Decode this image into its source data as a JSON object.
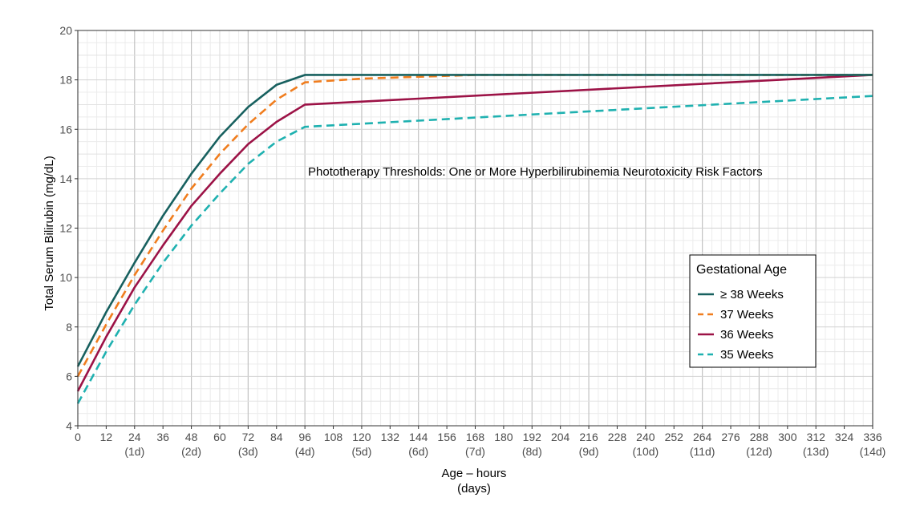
{
  "chart_data": {
    "type": "line",
    "xlabel": "Age – hours",
    "xlabel_sub": "(days)",
    "ylabel": "Total Serum Bilirubin (mg/dL)",
    "annotation": "Phototherapy Thresholds:  One or More Hyperbilirubinemia Neurotoxicity Risk Factors",
    "xlim": [
      0,
      336
    ],
    "ylim": [
      4,
      20
    ],
    "x_ticks": [
      0,
      12,
      24,
      36,
      48,
      60,
      72,
      84,
      96,
      108,
      120,
      132,
      144,
      156,
      168,
      180,
      192,
      204,
      216,
      228,
      240,
      252,
      264,
      276,
      288,
      300,
      312,
      324,
      336
    ],
    "x_day_ticks": [
      {
        "x": 24,
        "label": "(1d)"
      },
      {
        "x": 48,
        "label": "(2d)"
      },
      {
        "x": 72,
        "label": "(3d)"
      },
      {
        "x": 96,
        "label": "(4d)"
      },
      {
        "x": 120,
        "label": "(5d)"
      },
      {
        "x": 144,
        "label": "(6d)"
      },
      {
        "x": 168,
        "label": "(7d)"
      },
      {
        "x": 192,
        "label": "(8d)"
      },
      {
        "x": 216,
        "label": "(9d)"
      },
      {
        "x": 240,
        "label": "(10d)"
      },
      {
        "x": 264,
        "label": "(11d)"
      },
      {
        "x": 288,
        "label": "(12d)"
      },
      {
        "x": 312,
        "label": "(13d)"
      },
      {
        "x": 336,
        "label": "(14d)"
      }
    ],
    "y_ticks": [
      4,
      6,
      8,
      10,
      12,
      14,
      16,
      18,
      20
    ],
    "grid": true,
    "legend": {
      "title": "Gestational Age",
      "position": "right"
    },
    "series": [
      {
        "name": "≥ 38 Weeks",
        "color": "#17605f",
        "dash": "solid",
        "x": [
          0,
          12,
          24,
          36,
          48,
          60,
          72,
          84,
          96,
          336
        ],
        "y": [
          6.4,
          8.6,
          10.6,
          12.5,
          14.2,
          15.7,
          16.9,
          17.8,
          18.2,
          18.2
        ]
      },
      {
        "name": "37 Weeks",
        "color": "#f07d1e",
        "dash": "dashed",
        "x": [
          0,
          12,
          24,
          36,
          48,
          60,
          72,
          84,
          96,
          120,
          168,
          336
        ],
        "y": [
          6.0,
          8.1,
          10.1,
          11.9,
          13.6,
          15.0,
          16.2,
          17.2,
          17.9,
          18.05,
          18.2,
          18.2
        ]
      },
      {
        "name": "36 Weeks",
        "color": "#9c1246",
        "dash": "solid",
        "x": [
          0,
          12,
          24,
          36,
          48,
          60,
          72,
          84,
          96,
          336
        ],
        "y": [
          5.4,
          7.6,
          9.6,
          11.3,
          12.9,
          14.2,
          15.4,
          16.3,
          17.0,
          18.2
        ]
      },
      {
        "name": "35 Weeks",
        "color": "#1fb1b0",
        "dash": "dashed",
        "x": [
          0,
          12,
          24,
          36,
          48,
          60,
          72,
          84,
          96,
          336
        ],
        "y": [
          4.9,
          7.0,
          8.9,
          10.6,
          12.1,
          13.4,
          14.6,
          15.5,
          16.1,
          17.35
        ]
      }
    ]
  }
}
